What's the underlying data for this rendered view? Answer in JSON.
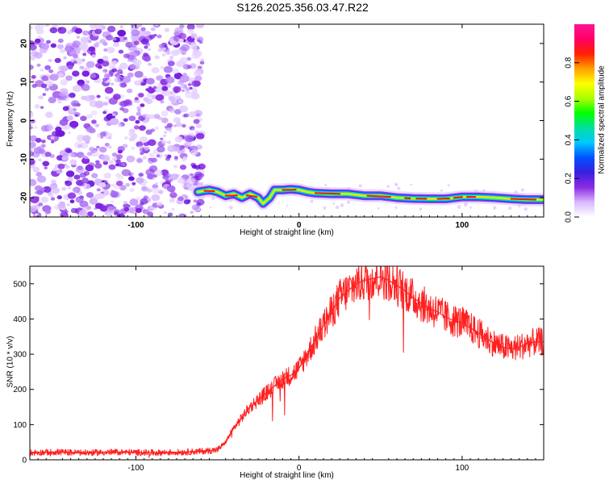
{
  "figure_title": "S126.2025.356.03.47.R22",
  "chart_data": [
    {
      "type": "heatmap",
      "name": "spectrogram",
      "xlabel": "Height of straight line (km)",
      "ylabel": "Frequency (Hz)",
      "xlim": [
        -165,
        150
      ],
      "ylim": [
        -25,
        25
      ],
      "xticks": [
        -100,
        0,
        100
      ],
      "yticks": [
        -20,
        -10,
        0,
        10,
        20
      ],
      "noise_region_x": [
        -165,
        -63
      ],
      "signal_track": {
        "x": [
          -62,
          -55,
          -50,
          -45,
          -40,
          -35,
          -30,
          -25,
          -22,
          -18,
          -15,
          -10,
          -5,
          0,
          5,
          10,
          20,
          30,
          40,
          50,
          60,
          70,
          80,
          90,
          100,
          110,
          120,
          130,
          140,
          150
        ],
        "freq": [
          -18.5,
          -18,
          -18.5,
          -19.5,
          -19,
          -20,
          -19,
          -20,
          -21.5,
          -20,
          -18,
          -18,
          -17.8,
          -18,
          -18.5,
          -18.8,
          -19,
          -19,
          -19.5,
          -19.5,
          -20,
          -20.2,
          -20.3,
          -20.3,
          -19.8,
          -19.8,
          -20,
          -20.3,
          -20.5,
          -20.5
        ]
      },
      "colorbar": {
        "label": "Normalized spectral amplitude",
        "ticks": [
          "0.0",
          "0.2",
          "0.4",
          "0.6",
          "0.8"
        ],
        "range": [
          0,
          1
        ],
        "colors": [
          "#ffffff",
          "#d9b8ff",
          "#8a2be2",
          "#3b1fe0",
          "#0050ff",
          "#00c8ff",
          "#00e0a0",
          "#00ff00",
          "#aaff00",
          "#ffff00",
          "#ffa000",
          "#ff2000",
          "#ff0066",
          "#ff1493"
        ]
      }
    },
    {
      "type": "line",
      "name": "snr",
      "xlabel": "Height of straight line (km)",
      "ylabel": "SNR (10 * v/v)",
      "xlim": [
        -165,
        150
      ],
      "ylim": [
        0,
        550
      ],
      "xticks": [
        -100,
        0,
        100
      ],
      "yticks": [
        0,
        100,
        200,
        300,
        400,
        500
      ],
      "color": "#ff2020",
      "series": [
        {
          "name": "SNR",
          "x": [
            -165,
            -150,
            -130,
            -110,
            -90,
            -70,
            -60,
            -50,
            -45,
            -40,
            -35,
            -30,
            -25,
            -20,
            -15,
            -10,
            -5,
            0,
            5,
            10,
            15,
            20,
            25,
            30,
            35,
            40,
            45,
            50,
            55,
            60,
            65,
            70,
            75,
            80,
            85,
            90,
            95,
            100,
            105,
            110,
            115,
            120,
            125,
            130,
            135,
            140,
            145,
            150
          ],
          "values": [
            20,
            22,
            20,
            22,
            20,
            22,
            24,
            28,
            50,
            90,
            120,
            150,
            170,
            190,
            210,
            230,
            240,
            260,
            300,
            340,
            380,
            420,
            460,
            480,
            500,
            510,
            515,
            520,
            510,
            495,
            480,
            460,
            445,
            430,
            420,
            405,
            395,
            390,
            375,
            360,
            345,
            330,
            320,
            315,
            320,
            330,
            335,
            335
          ]
        }
      ]
    }
  ]
}
